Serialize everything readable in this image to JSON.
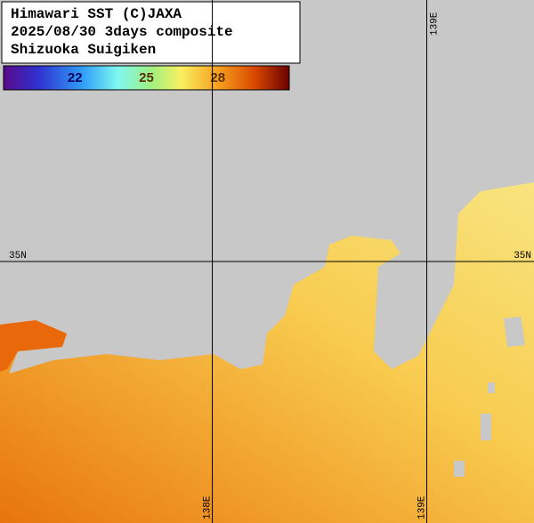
{
  "header": {
    "lines": [
      "Himawari SST (C)JAXA",
      "2025/08/30 3days composite",
      "Shizuoka Suigiken"
    ]
  },
  "colorbar": {
    "range": [
      19,
      31
    ],
    "ticks": [
      22,
      25,
      28
    ]
  },
  "map": {
    "xlim": [
      137.01,
      139.5
    ],
    "ylim": [
      33.78,
      36.22
    ],
    "xticks": [
      {
        "value": 138,
        "label": "138E"
      },
      {
        "value": 139,
        "label": "139E"
      }
    ],
    "yticks": [
      {
        "value": 35,
        "label": "35N"
      }
    ]
  }
}
